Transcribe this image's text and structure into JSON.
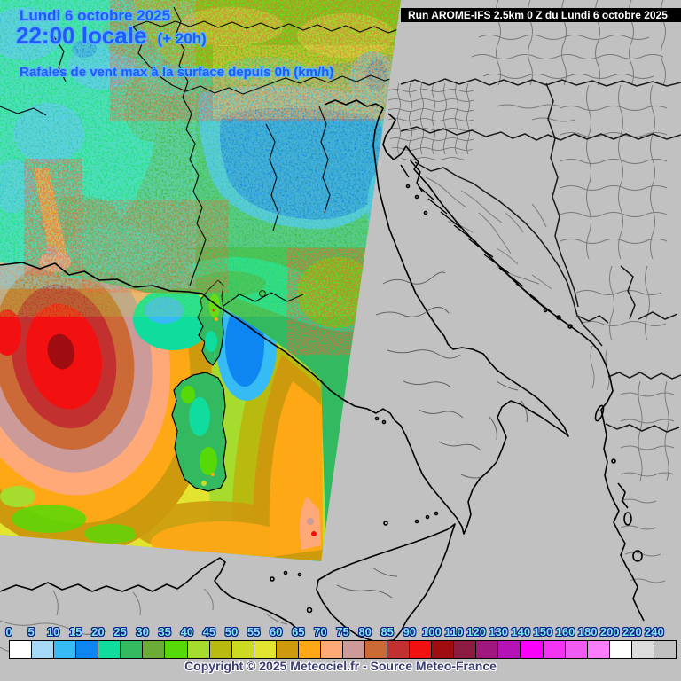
{
  "title_block": {
    "date": "Lundi 6 octobre 2025",
    "time": "22:00 locale",
    "run_offset": "(+ 20h)",
    "subtitle": "Rafales de vent max à la surface depuis 0h (km/h)"
  },
  "run_bar": {
    "label": "Run AROME-IFS 2.5km 0 Z du Lundi 6 octobre 2025"
  },
  "footer": {
    "copyright": "Copyright © 2025 Meteociel.fr - Source Meteo-France"
  },
  "legend": {
    "unit": "km/h",
    "tick_labels": [
      "0",
      "5",
      "10",
      "15",
      "20",
      "25",
      "30",
      "35",
      "40",
      "45",
      "50",
      "55",
      "60",
      "65",
      "70",
      "75",
      "80",
      "85",
      "90",
      "100",
      "110",
      "120",
      "130",
      "140",
      "150",
      "160",
      "180",
      "200",
      "220",
      "240"
    ],
    "colors": [
      "#ffffff",
      "#a6d9f7",
      "#36bbf5",
      "#0d86f1",
      "#0fdc9d",
      "#33b95f",
      "#6cab38",
      "#57d907",
      "#a5dc2d",
      "#b9ba0f",
      "#ccdb21",
      "#e2e430",
      "#cd9a0e",
      "#ffa816",
      "#ffa979",
      "#cb9a99",
      "#cb6a36",
      "#c23030",
      "#f31010",
      "#a00d10",
      "#8c1b41",
      "#a0187e",
      "#b513b5",
      "#fa00fa",
      "#f234f2",
      "#ef5cef",
      "#fa7dfa",
      "#ffffff",
      "#dcdcdc",
      "#c0c0c0"
    ]
  },
  "colors": {
    "text_blue": "#1e5cf8",
    "text_halo": "#5fb2ff",
    "legend_label": "#7de9ec",
    "legend_label_halo": "#0c1886",
    "copyright": "#3b3b72",
    "map_background": "#c1c1c1",
    "admin_border_gray": "#777777",
    "coast_black": "#000000",
    "runbar_bg": "#000000",
    "runbar_text": "#ffffff"
  }
}
